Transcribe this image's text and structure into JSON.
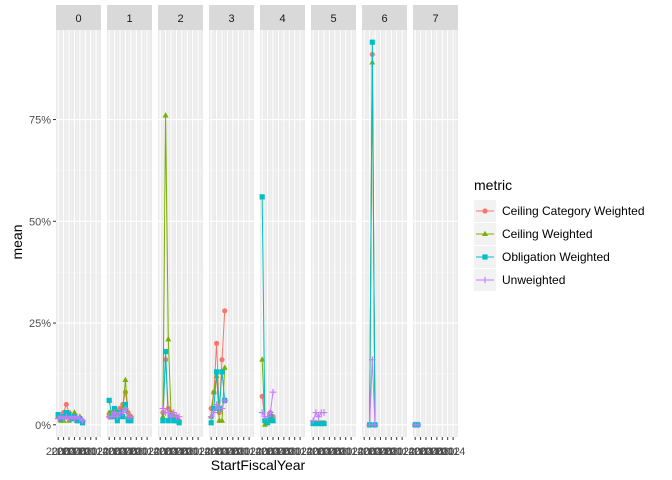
{
  "chart_data": {
    "type": "line",
    "facet_var": "",
    "facets": [
      "0",
      "1",
      "2",
      "3",
      "4",
      "5",
      "6",
      "7"
    ],
    "xlabel": "StartFiscalYear",
    "ylabel": "mean",
    "y_ticks": [
      {
        "value": 0,
        "label": "0%"
      },
      {
        "value": 0.25,
        "label": "25%"
      },
      {
        "value": 0.5,
        "label": "50%"
      },
      {
        "value": 0.75,
        "label": "75%"
      }
    ],
    "ylim": [
      -0.03,
      0.97
    ],
    "xlim": [
      1999.2,
      2015.8
    ],
    "x_ticks": [
      {
        "value": 2000,
        "label": "2000"
      },
      {
        "value": 2002,
        "label": "2002"
      },
      {
        "value": 2004,
        "label": "2004"
      },
      {
        "value": 2006,
        "label": "2006"
      },
      {
        "value": 2008,
        "label": "2008"
      },
      {
        "value": 2010,
        "label": "2010"
      },
      {
        "value": 2012,
        "label": "2012"
      },
      {
        "value": 2014,
        "label": "2014"
      }
    ],
    "legend": {
      "title": "metric",
      "placement": "right"
    },
    "series": [
      {
        "name": "Ceiling Category Weighted",
        "color": "#F8766D",
        "shape": "circle",
        "facets": {
          "0": [
            [
              2000,
              0.02
            ],
            [
              2001,
              0.02
            ],
            [
              2002,
              0.03
            ],
            [
              2003,
              0.05
            ],
            [
              2004,
              0.03
            ],
            [
              2005,
              0.02
            ],
            [
              2006,
              0.02
            ],
            [
              2007,
              0.01
            ],
            [
              2008,
              0.01
            ],
            [
              2009,
              0.01
            ]
          ],
          "1": [
            [
              2000,
              0.02
            ],
            [
              2001,
              0.03
            ],
            [
              2002,
              0.04
            ],
            [
              2003,
              0.03
            ],
            [
              2004,
              0.04
            ],
            [
              2005,
              0.05
            ],
            [
              2006,
              0.08
            ],
            [
              2007,
              0.03
            ],
            [
              2008,
              0.02
            ]
          ],
          "2": [
            [
              2001,
              0.03
            ],
            [
              2002,
              0.16
            ],
            [
              2003,
              0.04
            ],
            [
              2004,
              0.03
            ],
            [
              2005,
              0.02
            ],
            [
              2006,
              0.02
            ],
            [
              2007,
              0.01
            ]
          ],
          "3": [
            [
              2000,
              0.04
            ],
            [
              2001,
              0.08
            ],
            [
              2002,
              0.2
            ],
            [
              2003,
              0.03
            ],
            [
              2004,
              0.16
            ],
            [
              2005,
              0.28
            ]
          ],
          "4": [
            [
              2000,
              0.07
            ],
            [
              2001,
              0.01
            ],
            [
              2002,
              0.01
            ],
            [
              2003,
              0.03
            ],
            [
              2004,
              0.02
            ]
          ],
          "5": [
            [
              2000,
              0.005
            ],
            [
              2001,
              0.005
            ],
            [
              2002,
              0.005
            ],
            [
              2003,
              0.005
            ],
            [
              2004,
              0.005
            ]
          ],
          "6": [
            [
              2002,
              0.0
            ],
            [
              2003,
              0.91
            ],
            [
              2004,
              0.0
            ]
          ],
          "7": [
            [
              2000,
              0.0
            ],
            [
              2001,
              0.0
            ]
          ]
        }
      },
      {
        "name": "Ceiling Weighted",
        "color": "#7CAE00",
        "shape": "triangle",
        "facets": {
          "0": [
            [
              2000,
              0.02
            ],
            [
              2001,
              0.01
            ],
            [
              2002,
              0.01
            ],
            [
              2003,
              0.02
            ],
            [
              2004,
              0.01
            ],
            [
              2005,
              0.02
            ],
            [
              2006,
              0.03
            ],
            [
              2007,
              0.01
            ],
            [
              2008,
              0.02
            ],
            [
              2009,
              0.01
            ]
          ],
          "1": [
            [
              2000,
              0.03
            ],
            [
              2001,
              0.02
            ],
            [
              2002,
              0.02
            ],
            [
              2003,
              0.03
            ],
            [
              2004,
              0.02
            ],
            [
              2005,
              0.04
            ],
            [
              2006,
              0.11
            ],
            [
              2007,
              0.02
            ],
            [
              2008,
              0.02
            ]
          ],
          "2": [
            [
              2001,
              0.02
            ],
            [
              2002,
              0.76
            ],
            [
              2003,
              0.21
            ],
            [
              2004,
              0.03
            ],
            [
              2005,
              0.02
            ],
            [
              2006,
              0.01
            ],
            [
              2007,
              0.01
            ]
          ],
          "3": [
            [
              2000,
              0.02
            ],
            [
              2001,
              0.08
            ],
            [
              2002,
              0.12
            ],
            [
              2003,
              0.01
            ],
            [
              2004,
              0.01
            ],
            [
              2005,
              0.14
            ]
          ],
          "4": [
            [
              2000,
              0.16
            ],
            [
              2001,
              0.0
            ],
            [
              2002,
              0.01
            ],
            [
              2003,
              0.01
            ],
            [
              2004,
              0.01
            ]
          ],
          "5": [
            [
              2000,
              0.002
            ],
            [
              2001,
              0.002
            ],
            [
              2002,
              0.002
            ],
            [
              2003,
              0.002
            ],
            [
              2004,
              0.002
            ]
          ],
          "6": [
            [
              2002,
              0.0
            ],
            [
              2003,
              0.89
            ],
            [
              2004,
              0.0
            ]
          ],
          "7": [
            [
              2000,
              0.0
            ],
            [
              2001,
              0.0
            ]
          ]
        }
      },
      {
        "name": "Obligation Weighted",
        "color": "#00BFC4",
        "shape": "square",
        "facets": {
          "0": [
            [
              2000,
              0.025
            ],
            [
              2001,
              0.015
            ],
            [
              2002,
              0.02
            ],
            [
              2003,
              0.03
            ],
            [
              2004,
              0.025
            ],
            [
              2005,
              0.015
            ],
            [
              2006,
              0.02
            ],
            [
              2007,
              0.01
            ],
            [
              2008,
              0.015
            ],
            [
              2009,
              0.005
            ]
          ],
          "1": [
            [
              2000,
              0.06
            ],
            [
              2001,
              0.02
            ],
            [
              2002,
              0.04
            ],
            [
              2003,
              0.01
            ],
            [
              2004,
              0.03
            ],
            [
              2005,
              0.02
            ],
            [
              2006,
              0.05
            ],
            [
              2007,
              0.01
            ],
            [
              2008,
              0.01
            ]
          ],
          "2": [
            [
              2001,
              0.01
            ],
            [
              2002,
              0.18
            ],
            [
              2003,
              0.01
            ],
            [
              2004,
              0.02
            ],
            [
              2005,
              0.01
            ],
            [
              2006,
              0.01
            ],
            [
              2007,
              0.005
            ]
          ],
          "3": [
            [
              2000,
              0.005
            ],
            [
              2001,
              0.04
            ],
            [
              2002,
              0.13
            ],
            [
              2003,
              0.04
            ],
            [
              2004,
              0.13
            ],
            [
              2005,
              0.06
            ]
          ],
          "4": [
            [
              2000,
              0.56
            ],
            [
              2001,
              0.01
            ],
            [
              2002,
              0.005
            ],
            [
              2003,
              0.02
            ],
            [
              2004,
              0.01
            ]
          ],
          "5": [
            [
              2000,
              0.003
            ],
            [
              2001,
              0.003
            ],
            [
              2002,
              0.003
            ],
            [
              2003,
              0.003
            ],
            [
              2004,
              0.003
            ]
          ],
          "6": [
            [
              2002,
              0.0
            ],
            [
              2003,
              0.94
            ],
            [
              2004,
              0.0
            ]
          ],
          "7": [
            [
              2000,
              0.0
            ],
            [
              2001,
              0.0
            ]
          ]
        }
      },
      {
        "name": "Unweighted",
        "color": "#C77CFF",
        "shape": "plus",
        "facets": {
          "0": [
            [
              2000,
              0.015
            ],
            [
              2001,
              0.02
            ],
            [
              2002,
              0.015
            ],
            [
              2003,
              0.02
            ],
            [
              2004,
              0.015
            ],
            [
              2005,
              0.02
            ],
            [
              2006,
              0.015
            ],
            [
              2007,
              0.02
            ],
            [
              2008,
              0.015
            ],
            [
              2009,
              0.01
            ]
          ],
          "1": [
            [
              2000,
              0.02
            ],
            [
              2001,
              0.02
            ],
            [
              2002,
              0.03
            ],
            [
              2003,
              0.02
            ],
            [
              2004,
              0.03
            ],
            [
              2005,
              0.03
            ],
            [
              2006,
              0.04
            ],
            [
              2007,
              0.02
            ],
            [
              2008,
              0.02
            ]
          ],
          "2": [
            [
              2001,
              0.04
            ],
            [
              2002,
              0.03
            ],
            [
              2003,
              0.03
            ],
            [
              2004,
              0.02
            ],
            [
              2005,
              0.03
            ],
            [
              2006,
              0.02
            ],
            [
              2007,
              0.02
            ]
          ],
          "3": [
            [
              2000,
              0.02
            ],
            [
              2001,
              0.03
            ],
            [
              2002,
              0.05
            ],
            [
              2003,
              0.04
            ],
            [
              2004,
              0.04
            ],
            [
              2005,
              0.06
            ]
          ],
          "4": [
            [
              2000,
              0.03
            ],
            [
              2001,
              0.02
            ],
            [
              2002,
              0.02
            ],
            [
              2003,
              0.03
            ],
            [
              2004,
              0.08
            ]
          ],
          "5": [
            [
              2000,
              0.01
            ],
            [
              2001,
              0.03
            ],
            [
              2002,
              0.02
            ],
            [
              2003,
              0.03
            ],
            [
              2004,
              0.03
            ]
          ],
          "6": [
            [
              2002,
              0.0
            ],
            [
              2003,
              0.16
            ],
            [
              2004,
              0.0
            ]
          ],
          "7": [
            [
              2000,
              0.0
            ],
            [
              2001,
              0.0
            ]
          ]
        }
      }
    ]
  }
}
